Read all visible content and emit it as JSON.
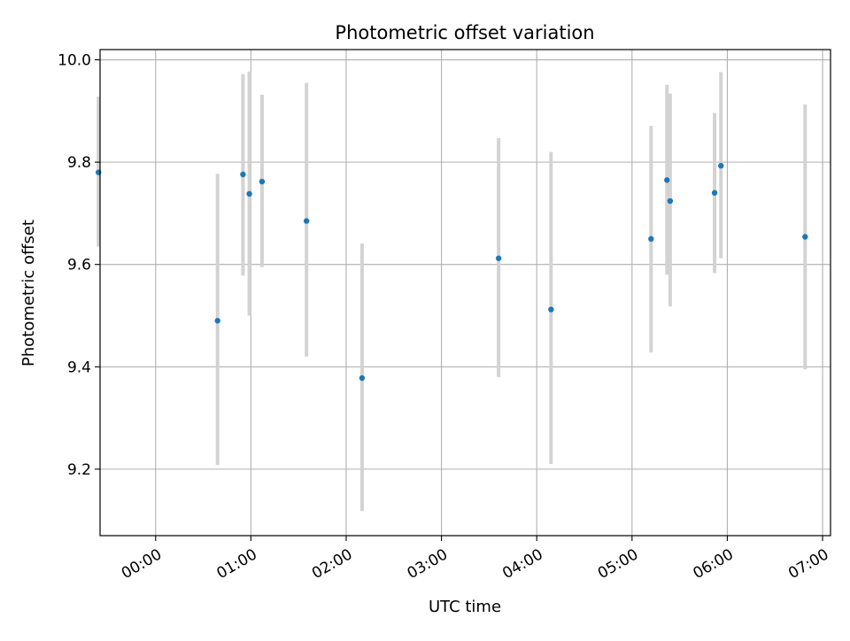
{
  "chart_data": {
    "type": "scatter",
    "title": "Photometric offset variation",
    "xlabel": "UTC time",
    "ylabel": "Photometric offset",
    "x_unit": "hours UTC",
    "xlim": [
      "23:25",
      "07:05"
    ],
    "ylim": [
      9.07,
      10.02
    ],
    "x_ticks": [
      {
        "value": "00:00",
        "label": "00:00"
      },
      {
        "value": "01:00",
        "label": "01:00"
      },
      {
        "value": "02:00",
        "label": "02:00"
      },
      {
        "value": "03:00",
        "label": "03:00"
      },
      {
        "value": "04:00",
        "label": "04:00"
      },
      {
        "value": "05:00",
        "label": "05:00"
      },
      {
        "value": "06:00",
        "label": "06:00"
      },
      {
        "value": "07:00",
        "label": "07:00"
      }
    ],
    "y_ticks": [
      {
        "value": 9.2,
        "label": "9.2"
      },
      {
        "value": 9.4,
        "label": "9.4"
      },
      {
        "value": 9.6,
        "label": "9.6"
      },
      {
        "value": 9.8,
        "label": "9.8"
      },
      {
        "value": 10.0,
        "label": "10.0"
      }
    ],
    "grid": true,
    "point_color": "#1f77b4",
    "errorbar_color": "#d3d3d3",
    "points": [
      {
        "x": "23:24",
        "y": 9.78,
        "ylow": 9.635,
        "yhigh": 9.928
      },
      {
        "x": "00:39",
        "y": 9.49,
        "ylow": 9.208,
        "yhigh": 9.777
      },
      {
        "x": "00:55",
        "y": 9.776,
        "ylow": 9.578,
        "yhigh": 9.972
      },
      {
        "x": "00:59",
        "y": 9.738,
        "ylow": 9.5,
        "yhigh": 9.977
      },
      {
        "x": "01:07",
        "y": 9.762,
        "ylow": 9.595,
        "yhigh": 9.932
      },
      {
        "x": "01:35",
        "y": 9.685,
        "ylow": 9.42,
        "yhigh": 9.955
      },
      {
        "x": "02:10",
        "y": 9.378,
        "ylow": 9.118,
        "yhigh": 9.641
      },
      {
        "x": "03:36",
        "y": 9.612,
        "ylow": 9.38,
        "yhigh": 9.847
      },
      {
        "x": "04:09",
        "y": 9.512,
        "ylow": 9.21,
        "yhigh": 9.82
      },
      {
        "x": "05:12",
        "y": 9.65,
        "ylow": 9.428,
        "yhigh": 9.871
      },
      {
        "x": "05:22",
        "y": 9.765,
        "ylow": 9.58,
        "yhigh": 9.951
      },
      {
        "x": "05:24",
        "y": 9.724,
        "ylow": 9.518,
        "yhigh": 9.934
      },
      {
        "x": "05:52",
        "y": 9.74,
        "ylow": 9.583,
        "yhigh": 9.896
      },
      {
        "x": "05:56",
        "y": 9.793,
        "ylow": 9.612,
        "yhigh": 9.976
      },
      {
        "x": "06:49",
        "y": 9.654,
        "ylow": 9.395,
        "yhigh": 9.913
      }
    ]
  }
}
